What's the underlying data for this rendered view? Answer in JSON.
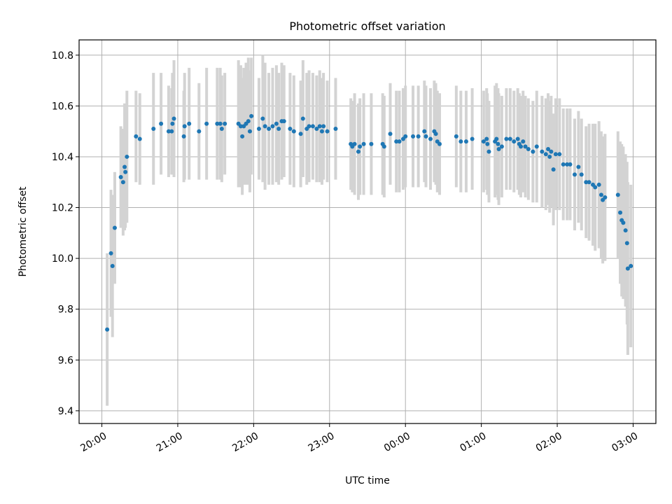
{
  "chart_data": {
    "type": "scatter",
    "title": "Photometric offset variation",
    "xlabel": "UTC time",
    "ylabel": "Photometric offset",
    "x_unit": "hours",
    "xlim": [
      19.7,
      27.3
    ],
    "ylim": [
      9.35,
      10.86
    ],
    "xticks": [
      20,
      21,
      22,
      23,
      24,
      25,
      26,
      27
    ],
    "xtick_labels": [
      "20:00",
      "21:00",
      "22:00",
      "23:00",
      "00:00",
      "01:00",
      "02:00",
      "03:00"
    ],
    "yticks": [
      9.4,
      9.6,
      9.8,
      10.0,
      10.2,
      10.4,
      10.6,
      10.8
    ],
    "ytick_labels": [
      "9.4",
      "9.6",
      "9.8",
      "10.0",
      "10.2",
      "10.4",
      "10.6",
      "10.8"
    ],
    "grid": true,
    "colors": {
      "point": "#1f77b4",
      "errorbar": "#d3d3d3",
      "grid": "#b0b0b0"
    },
    "series": [
      {
        "points": [
          [
            20.07,
            9.72,
            0.3
          ],
          [
            20.12,
            10.02,
            0.25
          ],
          [
            20.14,
            9.97,
            0.28
          ],
          [
            20.17,
            10.12,
            0.22
          ],
          [
            20.25,
            10.32,
            0.2
          ],
          [
            20.28,
            10.3,
            0.21
          ],
          [
            20.3,
            10.36,
            0.25
          ],
          [
            20.31,
            10.34,
            0.22
          ],
          [
            20.33,
            10.4,
            0.26
          ],
          [
            20.45,
            10.48,
            0.18
          ],
          [
            20.5,
            10.47,
            0.18
          ],
          [
            20.68,
            10.51,
            0.22
          ],
          [
            20.78,
            10.53,
            0.2
          ],
          [
            20.88,
            10.5,
            0.18
          ],
          [
            20.92,
            10.5,
            0.17
          ],
          [
            20.93,
            10.53,
            0.2
          ],
          [
            20.95,
            10.55,
            0.23
          ],
          [
            21.08,
            10.48,
            0.18
          ],
          [
            21.09,
            10.52,
            0.21
          ],
          [
            21.15,
            10.53,
            0.22
          ],
          [
            21.28,
            10.5,
            0.19
          ],
          [
            21.38,
            10.53,
            0.22
          ],
          [
            21.52,
            10.53,
            0.22
          ],
          [
            21.56,
            10.53,
            0.22
          ],
          [
            21.58,
            10.51,
            0.21
          ],
          [
            21.62,
            10.53,
            0.2
          ],
          [
            21.8,
            10.53,
            0.25
          ],
          [
            21.83,
            10.52,
            0.24
          ],
          [
            21.85,
            10.48,
            0.23
          ],
          [
            21.87,
            10.52,
            0.23
          ],
          [
            21.9,
            10.53,
            0.24
          ],
          [
            21.93,
            10.54,
            0.25
          ],
          [
            21.95,
            10.5,
            0.24
          ],
          [
            21.97,
            10.56,
            0.23
          ],
          [
            22.07,
            10.51,
            0.2
          ],
          [
            22.12,
            10.55,
            0.25
          ],
          [
            22.15,
            10.52,
            0.25
          ],
          [
            22.2,
            10.51,
            0.22
          ],
          [
            22.25,
            10.52,
            0.23
          ],
          [
            22.3,
            10.53,
            0.23
          ],
          [
            22.33,
            10.51,
            0.22
          ],
          [
            22.37,
            10.54,
            0.23
          ],
          [
            22.4,
            10.54,
            0.22
          ],
          [
            22.48,
            10.51,
            0.22
          ],
          [
            22.53,
            10.5,
            0.22
          ],
          [
            22.62,
            10.49,
            0.21
          ],
          [
            22.65,
            10.55,
            0.23
          ],
          [
            22.7,
            10.51,
            0.22
          ],
          [
            22.73,
            10.52,
            0.22
          ],
          [
            22.78,
            10.52,
            0.21
          ],
          [
            22.83,
            10.51,
            0.21
          ],
          [
            22.87,
            10.52,
            0.22
          ],
          [
            22.9,
            10.5,
            0.21
          ],
          [
            22.92,
            10.52,
            0.21
          ],
          [
            22.97,
            10.5,
            0.2
          ],
          [
            23.08,
            10.51,
            0.2
          ],
          [
            23.28,
            10.45,
            0.18
          ],
          [
            23.3,
            10.44,
            0.18
          ],
          [
            23.33,
            10.45,
            0.2
          ],
          [
            23.38,
            10.42,
            0.19
          ],
          [
            23.4,
            10.44,
            0.19
          ],
          [
            23.45,
            10.45,
            0.2
          ],
          [
            23.55,
            10.45,
            0.2
          ],
          [
            23.7,
            10.45,
            0.2
          ],
          [
            23.72,
            10.44,
            0.2
          ],
          [
            23.8,
            10.49,
            0.2
          ],
          [
            23.88,
            10.46,
            0.2
          ],
          [
            23.92,
            10.46,
            0.2
          ],
          [
            23.97,
            10.47,
            0.2
          ],
          [
            24.0,
            10.48,
            0.2
          ],
          [
            24.1,
            10.48,
            0.2
          ],
          [
            24.17,
            10.48,
            0.2
          ],
          [
            24.25,
            10.5,
            0.2
          ],
          [
            24.27,
            10.48,
            0.2
          ],
          [
            24.33,
            10.47,
            0.2
          ],
          [
            24.38,
            10.5,
            0.2
          ],
          [
            24.4,
            10.49,
            0.2
          ],
          [
            24.42,
            10.46,
            0.2
          ],
          [
            24.45,
            10.45,
            0.2
          ],
          [
            24.67,
            10.48,
            0.2
          ],
          [
            24.73,
            10.46,
            0.2
          ],
          [
            24.8,
            10.46,
            0.2
          ],
          [
            24.88,
            10.47,
            0.2
          ],
          [
            25.03,
            10.46,
            0.2
          ],
          [
            25.07,
            10.47,
            0.2
          ],
          [
            25.08,
            10.45,
            0.2
          ],
          [
            25.1,
            10.42,
            0.2
          ],
          [
            25.18,
            10.46,
            0.22
          ],
          [
            25.2,
            10.47,
            0.22
          ],
          [
            25.22,
            10.45,
            0.22
          ],
          [
            25.23,
            10.43,
            0.22
          ],
          [
            25.27,
            10.44,
            0.2
          ],
          [
            25.33,
            10.47,
            0.2
          ],
          [
            25.38,
            10.47,
            0.2
          ],
          [
            25.43,
            10.46,
            0.2
          ],
          [
            25.48,
            10.47,
            0.2
          ],
          [
            25.5,
            10.45,
            0.2
          ],
          [
            25.52,
            10.44,
            0.2
          ],
          [
            25.55,
            10.46,
            0.2
          ],
          [
            25.58,
            10.44,
            0.2
          ],
          [
            25.62,
            10.43,
            0.2
          ],
          [
            25.68,
            10.42,
            0.2
          ],
          [
            25.73,
            10.44,
            0.22
          ],
          [
            25.8,
            10.42,
            0.22
          ],
          [
            25.85,
            10.41,
            0.22
          ],
          [
            25.88,
            10.43,
            0.22
          ],
          [
            25.9,
            10.4,
            0.22
          ],
          [
            25.92,
            10.42,
            0.22
          ],
          [
            25.95,
            10.35,
            0.22
          ],
          [
            25.98,
            10.41,
            0.22
          ],
          [
            26.03,
            10.41,
            0.22
          ],
          [
            26.08,
            10.37,
            0.22
          ],
          [
            26.13,
            10.37,
            0.22
          ],
          [
            26.17,
            10.37,
            0.22
          ],
          [
            26.23,
            10.33,
            0.22
          ],
          [
            26.28,
            10.36,
            0.22
          ],
          [
            26.32,
            10.33,
            0.22
          ],
          [
            26.38,
            10.3,
            0.22
          ],
          [
            26.42,
            10.3,
            0.23
          ],
          [
            26.47,
            10.29,
            0.24
          ],
          [
            26.5,
            10.28,
            0.25
          ],
          [
            26.55,
            10.29,
            0.25
          ],
          [
            26.58,
            10.25,
            0.25
          ],
          [
            26.6,
            10.23,
            0.25
          ],
          [
            26.63,
            10.24,
            0.25
          ],
          [
            26.8,
            10.25,
            0.25
          ],
          [
            26.83,
            10.18,
            0.28
          ],
          [
            26.85,
            10.15,
            0.3
          ],
          [
            26.87,
            10.14,
            0.3
          ],
          [
            26.9,
            10.11,
            0.3
          ],
          [
            26.92,
            10.06,
            0.32
          ],
          [
            26.93,
            9.96,
            0.34
          ],
          [
            26.97,
            9.97,
            0.32
          ]
        ]
      }
    ]
  }
}
